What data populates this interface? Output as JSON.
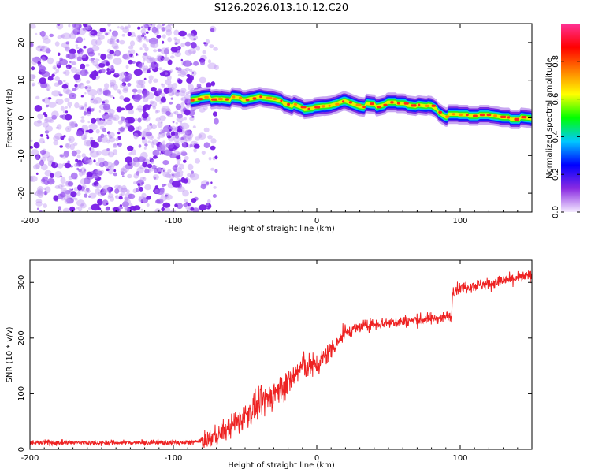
{
  "title": "S126.2026.013.10.12.C20",
  "chart_data": [
    {
      "type": "heatmap",
      "name": "spectrogram",
      "xlabel": "Height of straight line (km)",
      "ylabel": "Frequency (Hz)",
      "xlim": [
        -200,
        150
      ],
      "ylim": [
        -25,
        25
      ],
      "xticks": [
        -200,
        -100,
        0,
        100
      ],
      "yticks": [
        -20,
        -10,
        0,
        10,
        20
      ],
      "noise_region_x": [
        -200,
        -85
      ],
      "ridge": {
        "x": [
          -88,
          -80,
          -70,
          -60,
          -50,
          -40,
          -30,
          -20,
          -10,
          0,
          10,
          20,
          30,
          40,
          50,
          60,
          70,
          80,
          90,
          100,
          110,
          120,
          130,
          140,
          150
        ],
        "freq": [
          4.5,
          5.0,
          5.5,
          5.0,
          4.5,
          5.5,
          5.0,
          4.0,
          2.5,
          3.0,
          3.5,
          5.0,
          3.5,
          3.0,
          4.0,
          4.0,
          3.5,
          3.0,
          0.5,
          0.5,
          0.5,
          0.5,
          0.0,
          0.0,
          -0.5
        ]
      },
      "colorbar": {
        "label": "Normalized spectral amplitude",
        "min": 0.0,
        "max": 1.0,
        "ticks": [
          0.0,
          0.2,
          0.4,
          0.6,
          0.8
        ],
        "colors": [
          "#f4eaff",
          "#8a2be2",
          "#0000ff",
          "#00c8ff",
          "#00ff00",
          "#ffff00",
          "#ff7f00",
          "#ff0000",
          "#ff3296"
        ]
      }
    },
    {
      "type": "line",
      "name": "snr",
      "xlabel": "Height of straight line (km)",
      "ylabel": "SNR (10 * v/v)",
      "xlim": [
        -200,
        150
      ],
      "ylim": [
        0,
        340
      ],
      "xticks": [
        -200,
        -100,
        0,
        100
      ],
      "yticks": [
        0,
        100,
        200,
        300
      ],
      "color": "#ee2222",
      "series": [
        {
          "name": "SNR",
          "x": [
            -200,
            -180,
            -160,
            -140,
            -120,
            -100,
            -90,
            -80,
            -70,
            -60,
            -50,
            -40,
            -30,
            -20,
            -10,
            0,
            10,
            20,
            30,
            40,
            50,
            60,
            70,
            80,
            90,
            94,
            95,
            100,
            110,
            120,
            130,
            140,
            150
          ],
          "values": [
            12,
            12,
            12,
            12,
            12,
            12,
            12,
            15,
            25,
            40,
            60,
            80,
            100,
            120,
            150,
            150,
            180,
            210,
            220,
            225,
            228,
            230,
            232,
            235,
            238,
            240,
            285,
            290,
            295,
            298,
            302,
            308,
            312
          ]
        }
      ]
    }
  ]
}
